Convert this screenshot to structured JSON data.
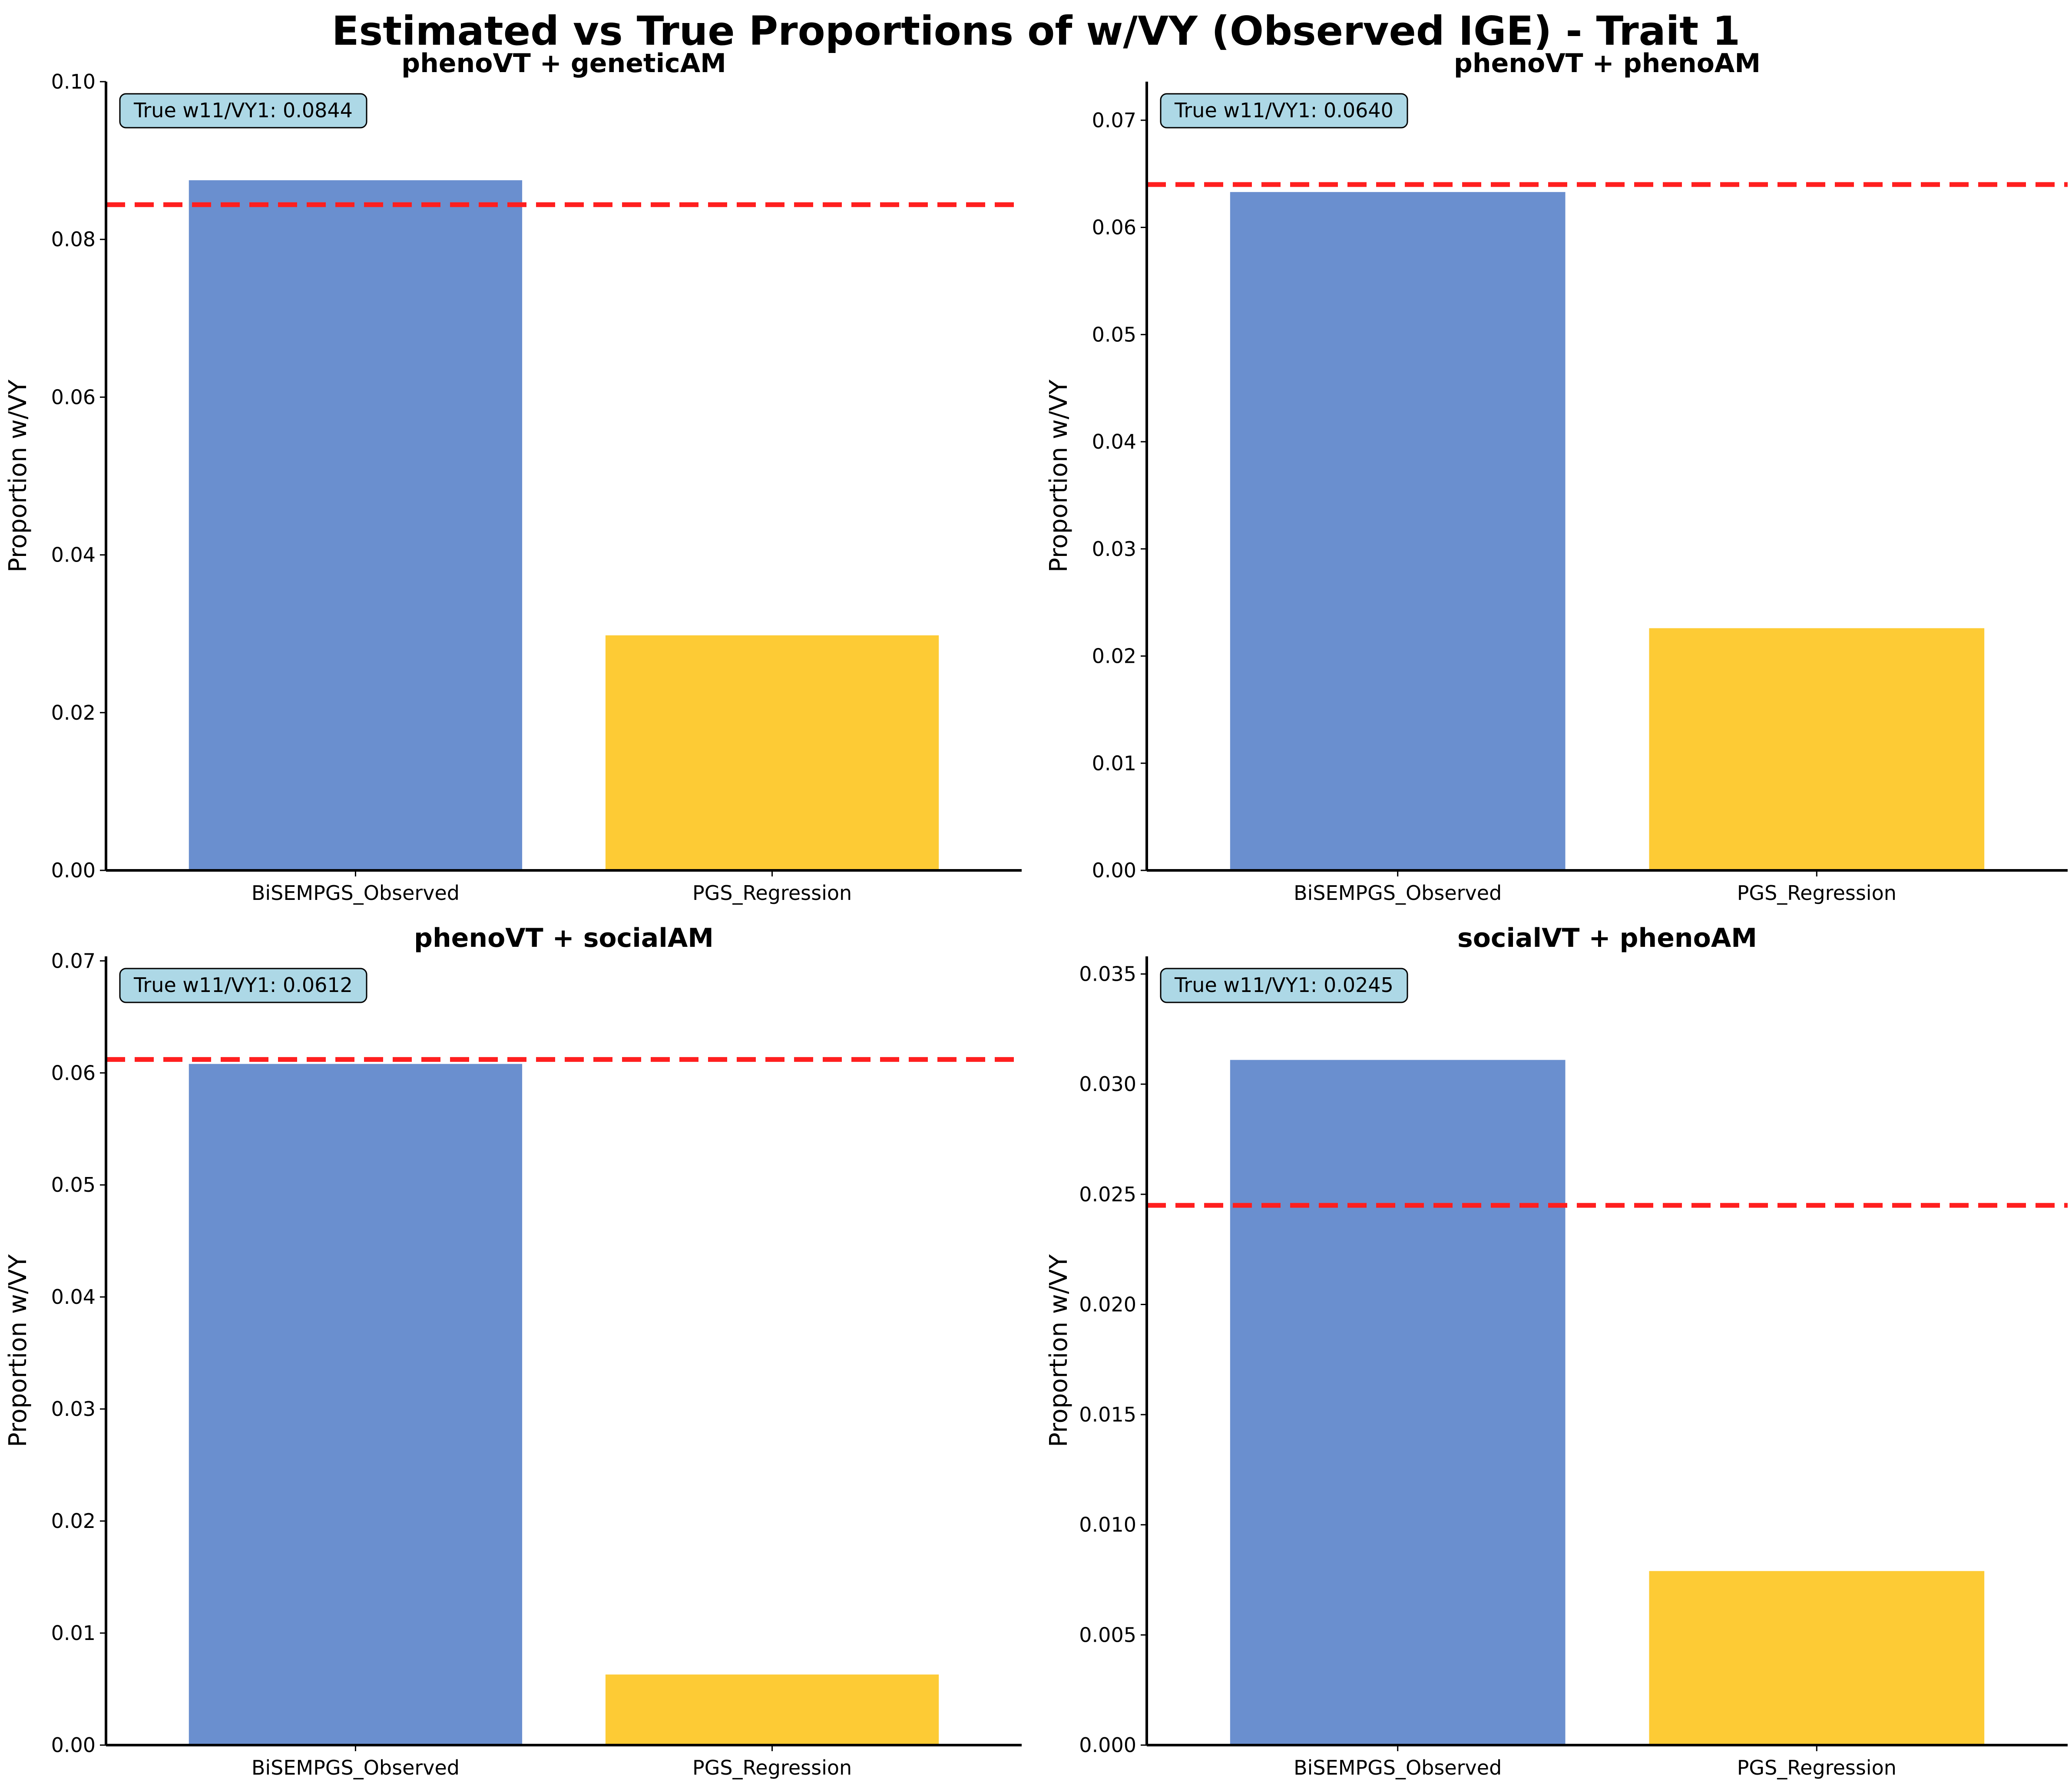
{
  "title": "Estimated vs True Proportions of w/VY (Observed IGE) - Trait 1",
  "colors": {
    "bar_observed": "#6A8FCF",
    "bar_regression": "#FDCB35",
    "true_line": "#FF1F1F",
    "badge_fill": "#ADD8E6",
    "axis": "#000000"
  },
  "chart_data": [
    {
      "type": "bar",
      "title": "phenoVT + geneticAM",
      "categories": [
        "BiSEMPGS_Observed",
        "PGS_Regression"
      ],
      "values": [
        0.0875,
        0.0298
      ],
      "true_value": 0.0844,
      "true_label": "True w11/VY1: 0.0844",
      "ylabel": "Proportion w/VY",
      "ylim": [
        0,
        0.1
      ],
      "yticks": [
        0,
        0.02,
        0.04,
        0.06,
        0.08,
        0.1
      ],
      "ytick_labels": [
        "0.00",
        "0.02",
        "0.04",
        "0.06",
        "0.08",
        "0.10"
      ],
      "grid": false
    },
    {
      "type": "bar",
      "title": "phenoVT + phenoAM",
      "categories": [
        "BiSEMPGS_Observed",
        "PGS_Regression"
      ],
      "values": [
        0.0633,
        0.0226
      ],
      "true_value": 0.064,
      "true_label": "True w11/VY1: 0.0640",
      "ylabel": "Proportion w/VY",
      "ylim": [
        0,
        0.0736
      ],
      "yticks": [
        0,
        0.01,
        0.02,
        0.03,
        0.04,
        0.05,
        0.06,
        0.07
      ],
      "ytick_labels": [
        "0.00",
        "0.01",
        "0.02",
        "0.03",
        "0.04",
        "0.05",
        "0.06",
        "0.07"
      ],
      "grid": false
    },
    {
      "type": "bar",
      "title": "phenoVT + socialAM",
      "categories": [
        "BiSEMPGS_Observed",
        "PGS_Regression"
      ],
      "values": [
        0.0608,
        0.0063
      ],
      "true_value": 0.0612,
      "true_label": "True w11/VY1: 0.0612",
      "ylabel": "Proportion w/VY",
      "ylim": [
        0,
        0.0704
      ],
      "yticks": [
        0,
        0.01,
        0.02,
        0.03,
        0.04,
        0.05,
        0.06,
        0.07
      ],
      "ytick_labels": [
        "0.00",
        "0.01",
        "0.02",
        "0.03",
        "0.04",
        "0.05",
        "0.06",
        "0.07"
      ],
      "grid": false
    },
    {
      "type": "bar",
      "title": "socialVT + phenoAM",
      "categories": [
        "BiSEMPGS_Observed",
        "PGS_Regression"
      ],
      "values": [
        0.0311,
        0.0079
      ],
      "true_value": 0.0245,
      "true_label": "True w11/VY1: 0.0245",
      "ylabel": "Proportion w/VY",
      "ylim": [
        0,
        0.0358
      ],
      "yticks": [
        0,
        0.005,
        0.01,
        0.015,
        0.02,
        0.025,
        0.03,
        0.035
      ],
      "ytick_labels": [
        "0.000",
        "0.005",
        "0.010",
        "0.015",
        "0.020",
        "0.025",
        "0.030",
        "0.035"
      ],
      "grid": false
    }
  ]
}
